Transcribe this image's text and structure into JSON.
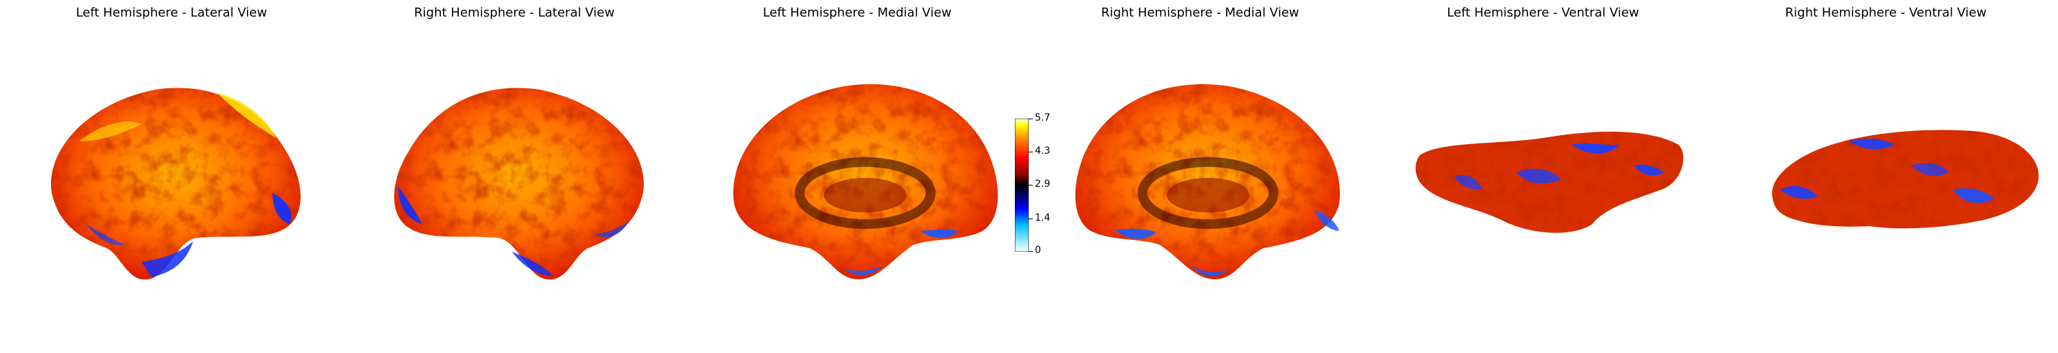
{
  "figure": {
    "panels": [
      {
        "title": "Left Hemisphere - Lateral View"
      },
      {
        "title": "Right Hemisphere - Lateral View"
      },
      {
        "title": "Left Hemisphere - Medial View"
      },
      {
        "title": "Right Hemisphere - Medial View"
      },
      {
        "title": "Left Hemisphere - Ventral View"
      },
      {
        "title": "Right Hemisphere - Ventral View"
      }
    ]
  },
  "colorbar": {
    "colormap": "cold_hot",
    "min": 0,
    "max": 5.7,
    "ticks": [
      "5.7",
      "4.3",
      "2.9",
      "1.4",
      "0"
    ],
    "colors": [
      "#ffffff",
      "#00bfff",
      "#0000ff",
      "#000000",
      "#8b0000",
      "#ff0000",
      "#ff8c00",
      "#ffff00",
      "#ffffff"
    ]
  }
}
